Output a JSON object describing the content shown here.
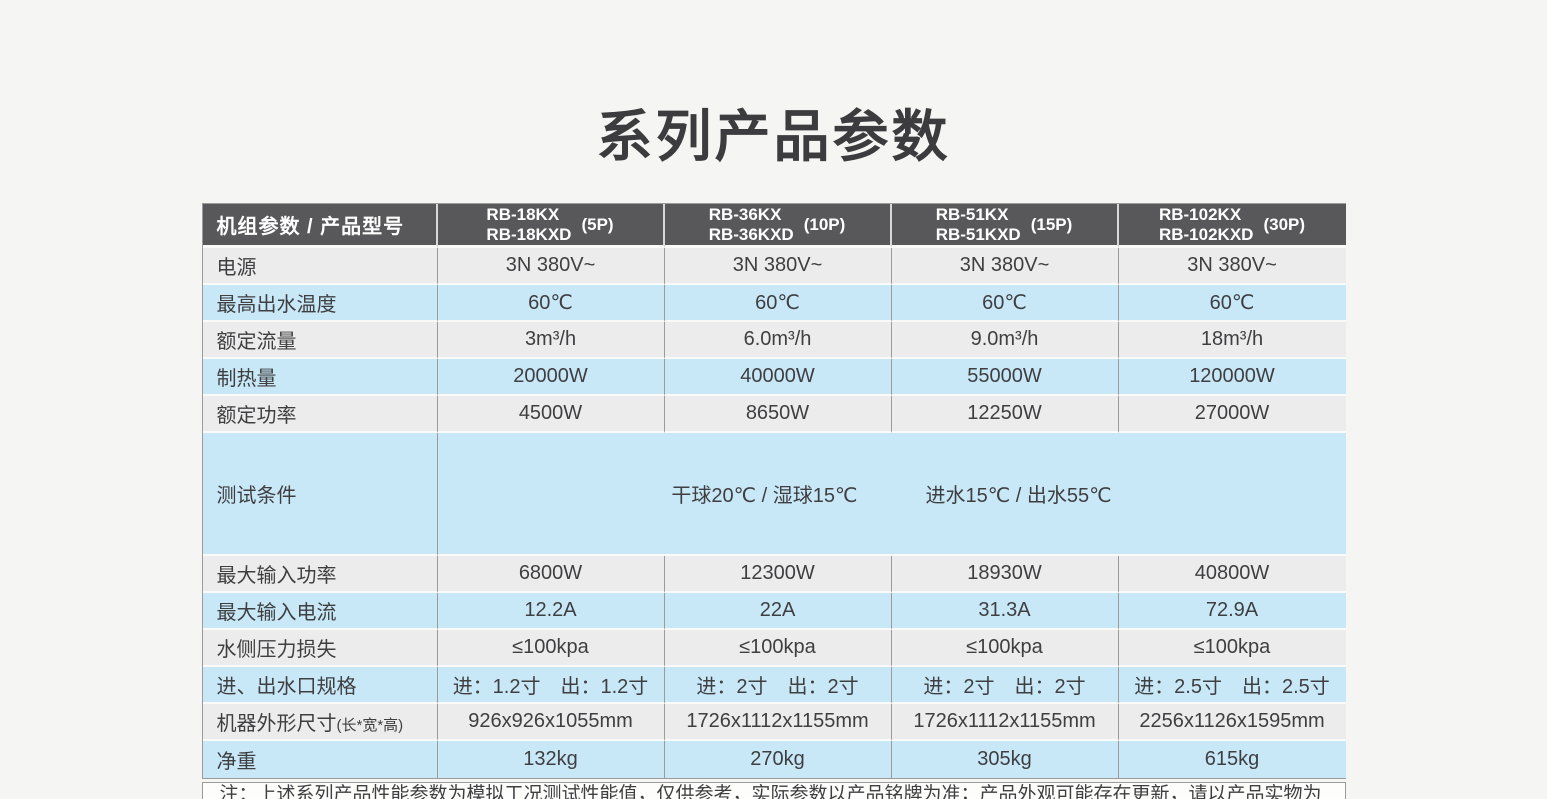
{
  "page_title": "系列产品参数",
  "colors": {
    "page_bg": "#f5f5f4",
    "header_bg": "#58585a",
    "header_text": "#ffffff",
    "row_gray": "#ececec",
    "row_blue": "#c8e8f8",
    "body_text": "#3f3f41",
    "border_gray": "#9b9b9b"
  },
  "table": {
    "header": {
      "param_label": "机组参数 / 产品型号",
      "models": [
        {
          "line1": "RB-18KX",
          "line2": "RB-18KXD",
          "power": "(5P)"
        },
        {
          "line1": "RB-36KX",
          "line2": "RB-36KXD",
          "power": "(10P)"
        },
        {
          "line1": "RB-51KX",
          "line2": "RB-51KXD",
          "power": "(15P)"
        },
        {
          "line1": "RB-102KX",
          "line2": "RB-102KXD",
          "power": "(30P)"
        }
      ]
    },
    "rows": [
      {
        "label": "电源",
        "values": [
          "3N 380V~",
          "3N 380V~",
          "3N 380V~",
          "3N 380V~"
        ]
      },
      {
        "label": "最高出水温度",
        "values": [
          "60℃",
          "60℃",
          "60℃",
          "60℃"
        ]
      },
      {
        "label": "额定流量",
        "values": [
          "3m³/h",
          "6.0m³/h",
          "9.0m³/h",
          "18m³/h"
        ]
      },
      {
        "label": "制热量",
        "values": [
          "20000W",
          "40000W",
          "55000W",
          "120000W"
        ]
      },
      {
        "label": "额定功率",
        "values": [
          "4500W",
          "8650W",
          "12250W",
          "27000W"
        ]
      },
      {
        "label": "测试条件",
        "merged": true,
        "values": [
          "干球20℃ / 湿球15℃",
          "进水15℃ / 出水55℃"
        ]
      },
      {
        "label": "最大输入功率",
        "values": [
          "6800W",
          "12300W",
          "18930W",
          "40800W"
        ]
      },
      {
        "label": "最大输入电流",
        "values": [
          "12.2A",
          "22A",
          "31.3A",
          "72.9A"
        ]
      },
      {
        "label": "水侧压力损失",
        "values": [
          "≤100kpa",
          "≤100kpa",
          "≤100kpa",
          "≤100kpa"
        ]
      },
      {
        "label": "进、出水口规格",
        "values": [
          "进：1.2寸　出：1.2寸",
          "进：2寸　出：2寸",
          "进：2寸　出：2寸",
          "进：2.5寸　出：2.5寸"
        ]
      },
      {
        "label": "机器外形尺寸",
        "label_suffix": "(长*宽*高)",
        "values": [
          "926x926x1055mm",
          "1726x1112x1155mm",
          "1726x1112x1155mm",
          "2256x1126x1595mm"
        ]
      },
      {
        "label": "净重",
        "values": [
          "132kg",
          "270kg",
          "305kg",
          "615kg"
        ]
      }
    ],
    "note": "注：上述系列产品性能参数为模拟工况测试性能值，仅供参考，实际参数以产品铭牌为准；产品外观可能存在更新，请以产品实物为准。"
  }
}
